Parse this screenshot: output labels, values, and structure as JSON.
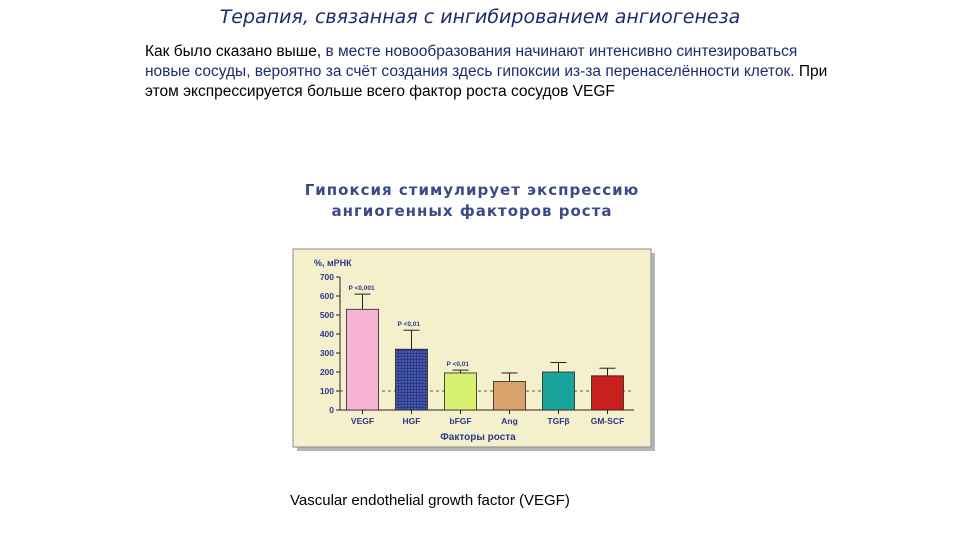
{
  "slide": {
    "title": "Терапия, связанная с ингибированием ангиогенеза",
    "intro_1": "Как было сказано выше, ",
    "intro_2": "в месте новообразования начинают интенсивно синтезироваться новые сосуды, вероятно за счёт создания здесь гипоксии из-за перенаселённости клеток.",
    "intro_3": " При этом экспрессируется  больше всего фактор роста сосудов VEGF",
    "caption": "Vascular endothelial growth factor (VEGF)"
  },
  "chart_data": {
    "type": "bar",
    "title_line1": "Гипоксия  стимулирует  экспрессию",
    "title_line2": "ангиогенных  факторов  роста",
    "ylabel": "%, мРНК",
    "xlabel": "Факторы роста",
    "ylim": [
      0,
      700
    ],
    "yticks": [
      0,
      100,
      200,
      300,
      400,
      500,
      600,
      700
    ],
    "baseline_dashed": 100,
    "categories": [
      "VEGF",
      "HGF",
      "bFGF",
      "Ang",
      "TGFβ",
      "GM-SCF"
    ],
    "values": [
      530,
      320,
      195,
      150,
      200,
      180
    ],
    "errors": [
      80,
      100,
      15,
      45,
      50,
      40
    ],
    "annotations": [
      "P <0,001",
      "P <0,01",
      "P <0,01",
      "",
      "",
      ""
    ],
    "colors": [
      "#f7b3d6",
      "#2a3a8c",
      "#d8f070",
      "#d9a26a",
      "#1aa39a",
      "#c8201e"
    ],
    "plot_background": "#f5f0cc",
    "frame_color": "#8a8a8a"
  }
}
